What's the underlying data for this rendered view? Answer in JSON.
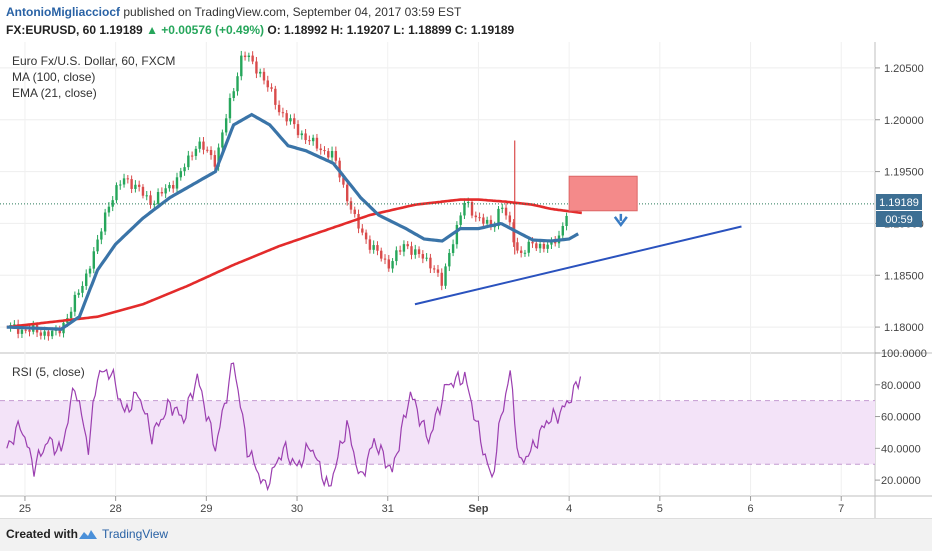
{
  "header": {
    "author": "AntonioMigliacciocf",
    "published": "published on TradingView.com, September 04, 2017 03:59 EST",
    "symbol_line": "FX:EURUSD, 60  1.19189",
    "change": "▲ +0.00576 (+0.49%)",
    "ohlc": "O: 1.18992  H: 1.19207  L: 1.18899  C: 1.19189"
  },
  "legend": {
    "instrument": "Euro Fx/U.S. Dollar, 60, FXCM",
    "ma": "MA (100, close)",
    "ema": "EMA (21, close)",
    "rsi": "RSI (5, close)"
  },
  "footer": {
    "created": "Created with",
    "brand": "TradingView"
  },
  "colors": {
    "up_candle": "#26a65b",
    "down_candle": "#d94b4b",
    "ma": "#e32b2b",
    "ema": "#3a74a8",
    "trendline": "#2a52be",
    "rsi_line": "#9b3fb0",
    "rsi_band": "#f3e3f8",
    "zone": "#f48a8a",
    "arrow": "#3a7cc4",
    "price_label": "#3d6f93"
  },
  "chart_data": {
    "type": "candlestick",
    "price_axis": {
      "ylim": [
        1.1775,
        1.2075
      ],
      "ticks": [
        "1.20500",
        "1.20000",
        "1.19500",
        "1.19000",
        "1.18500",
        "1.18000"
      ]
    },
    "rsi_axis": {
      "ylim": [
        10,
        100
      ],
      "ticks": [
        "100.0000",
        "80.0000",
        "60.0000",
        "40.0000",
        "20.0000"
      ],
      "bands": [
        30,
        70
      ]
    },
    "x_ticks": [
      {
        "label": "25",
        "t": 0.2
      },
      {
        "label": "28",
        "t": 1.2
      },
      {
        "label": "29",
        "t": 2.2
      },
      {
        "label": "30",
        "t": 3.2
      },
      {
        "label": "31",
        "t": 4.2
      },
      {
        "label": "Sep",
        "t": 5.2
      },
      {
        "label": "4",
        "t": 6.2
      },
      {
        "label": "5",
        "t": 7.2
      },
      {
        "label": "6",
        "t": 8.2
      },
      {
        "label": "7",
        "t": 9.2
      }
    ],
    "last_price": "1.19189",
    "countdown": "00:59",
    "candles_anchor": [
      [
        0,
        1.18
      ],
      [
        0.55,
        1.1793
      ],
      [
        0.7,
        1.1815
      ],
      [
        0.85,
        1.1845
      ],
      [
        1.0,
        1.188
      ],
      [
        1.1,
        1.1915
      ],
      [
        1.3,
        1.1945
      ],
      [
        1.6,
        1.192
      ],
      [
        1.9,
        1.1945
      ],
      [
        2.1,
        1.1978
      ],
      [
        2.3,
        1.196
      ],
      [
        2.5,
        1.203
      ],
      [
        2.6,
        1.2065
      ],
      [
        2.8,
        1.2045
      ],
      [
        3.0,
        1.201
      ],
      [
        3.2,
        1.199
      ],
      [
        3.4,
        1.1975
      ],
      [
        3.6,
        1.1965
      ],
      [
        3.85,
        1.19
      ],
      [
        4.0,
        1.188
      ],
      [
        4.2,
        1.186
      ],
      [
        4.4,
        1.188
      ],
      [
        4.6,
        1.1865
      ],
      [
        4.7,
        1.186
      ],
      [
        4.8,
        1.184
      ],
      [
        4.9,
        1.188
      ],
      [
        5.05,
        1.192
      ],
      [
        5.2,
        1.1905
      ],
      [
        5.35,
        1.1895
      ],
      [
        5.45,
        1.192
      ],
      [
        5.55,
        1.1895
      ],
      [
        5.65,
        1.187
      ],
      [
        5.8,
        1.188
      ],
      [
        6.0,
        1.1878
      ],
      [
        6.1,
        1.189
      ],
      [
        6.2,
        1.19189
      ]
    ],
    "ma_100": [
      [
        0,
        1.18
      ],
      [
        1.0,
        1.181
      ],
      [
        1.5,
        1.1822
      ],
      [
        2.0,
        1.184
      ],
      [
        2.5,
        1.186
      ],
      [
        3.0,
        1.1878
      ],
      [
        3.5,
        1.1893
      ],
      [
        4.0,
        1.1908
      ],
      [
        4.5,
        1.1918
      ],
      [
        5.0,
        1.1923
      ],
      [
        5.2,
        1.1923
      ],
      [
        5.5,
        1.1921
      ],
      [
        5.8,
        1.1918
      ],
      [
        6.0,
        1.1914
      ],
      [
        6.35,
        1.191
      ]
    ],
    "ema_21": [
      [
        0,
        1.18
      ],
      [
        0.6,
        1.1798
      ],
      [
        0.8,
        1.181
      ],
      [
        1.0,
        1.1855
      ],
      [
        1.2,
        1.188
      ],
      [
        1.5,
        1.1905
      ],
      [
        1.8,
        1.1925
      ],
      [
        2.0,
        1.1935
      ],
      [
        2.3,
        1.195
      ],
      [
        2.5,
        1.1995
      ],
      [
        2.7,
        1.2005
      ],
      [
        2.9,
        1.1995
      ],
      [
        3.1,
        1.1975
      ],
      [
        3.3,
        1.197
      ],
      [
        3.6,
        1.1958
      ],
      [
        3.9,
        1.1925
      ],
      [
        4.1,
        1.1908
      ],
      [
        4.4,
        1.1895
      ],
      [
        4.6,
        1.1885
      ],
      [
        4.8,
        1.1883
      ],
      [
        5.0,
        1.1895
      ],
      [
        5.2,
        1.1895
      ],
      [
        5.45,
        1.19
      ],
      [
        5.6,
        1.1893
      ],
      [
        5.8,
        1.1884
      ],
      [
        6.0,
        1.1883
      ],
      [
        6.2,
        1.1885
      ],
      [
        6.3,
        1.189
      ]
    ],
    "rsi": [
      [
        0,
        40
      ],
      [
        0.15,
        55
      ],
      [
        0.3,
        28
      ],
      [
        0.45,
        45
      ],
      [
        0.6,
        38
      ],
      [
        0.75,
        80
      ],
      [
        0.9,
        40
      ],
      [
        1.0,
        87
      ],
      [
        1.15,
        88
      ],
      [
        1.3,
        62
      ],
      [
        1.45,
        75
      ],
      [
        1.6,
        48
      ],
      [
        1.8,
        68
      ],
      [
        1.95,
        58
      ],
      [
        2.1,
        85
      ],
      [
        2.3,
        40
      ],
      [
        2.5,
        95
      ],
      [
        2.65,
        40
      ],
      [
        2.85,
        15
      ],
      [
        3.05,
        40
      ],
      [
        3.2,
        28
      ],
      [
        3.35,
        42
      ],
      [
        3.55,
        14
      ],
      [
        3.75,
        55
      ],
      [
        3.9,
        20
      ],
      [
        4.05,
        45
      ],
      [
        4.25,
        25
      ],
      [
        4.45,
        75
      ],
      [
        4.65,
        45
      ],
      [
        4.85,
        80
      ],
      [
        5.05,
        85
      ],
      [
        5.25,
        40
      ],
      [
        5.35,
        20
      ],
      [
        5.45,
        60
      ],
      [
        5.55,
        88
      ],
      [
        5.65,
        30
      ],
      [
        5.8,
        40
      ],
      [
        5.95,
        57
      ],
      [
        6.1,
        62
      ],
      [
        6.25,
        75
      ],
      [
        6.35,
        90
      ]
    ],
    "trendline": [
      [
        4.5,
        1.1822
      ],
      [
        8.1,
        1.1897
      ]
    ],
    "resistance_zone": {
      "x0": 6.2,
      "x1": 6.95,
      "y0": 1.19122,
      "y1": 1.19455
    },
    "arrow": {
      "x": 6.77,
      "y_from": 1.19092,
      "y_to": 1.19005
    }
  }
}
